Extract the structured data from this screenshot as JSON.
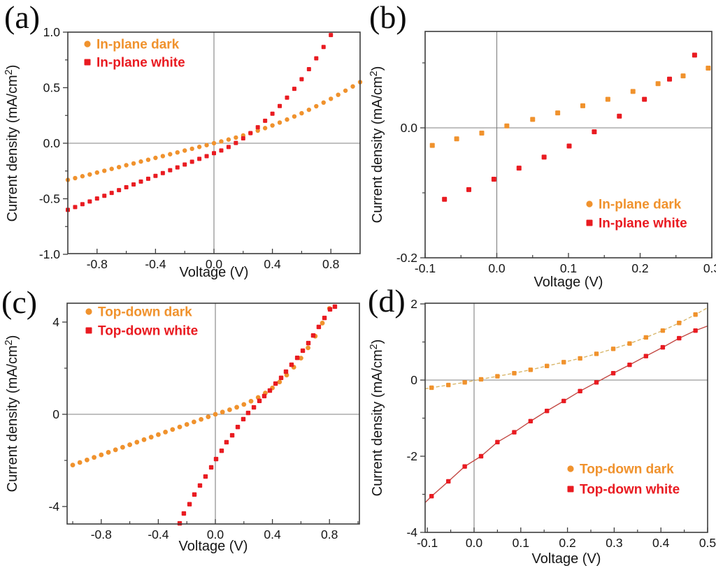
{
  "figure": {
    "panels": [
      {
        "tag": "(a)"
      },
      {
        "tag": "(b)"
      },
      {
        "tag": "(c)"
      },
      {
        "tag": "(d)"
      }
    ]
  },
  "colors": {
    "dark_series": "#F0922D",
    "white_series": "#E91B21",
    "dark_line": "#D8B66A",
    "white_line": "#C34843",
    "axis": "#3C3C3C",
    "zero_line": "#808080",
    "tick_label": "#151515"
  },
  "chart_data": [
    {
      "id": "a",
      "type": "scatter",
      "xlabel": "Voltage (V)",
      "ylabel": "Current density  (mA/cm²)",
      "xlim": [
        -1.0,
        1.0
      ],
      "ylim": [
        -1.0,
        1.0
      ],
      "x_major_ticks": [
        -0.8,
        -0.4,
        0.0,
        0.4,
        0.8
      ],
      "x_major_labels": [
        "-0.8",
        "-0.4",
        "0.0",
        "0.4",
        "0.8"
      ],
      "x_minor_ticks": [
        -0.6,
        -0.2,
        0.2,
        0.6
      ],
      "y_major_ticks": [
        1.0,
        0.5,
        0.0,
        -0.5,
        -1.0
      ],
      "y_major_labels": [
        "1.0",
        "0.5",
        "0.0",
        "-0.5",
        "-1.0"
      ],
      "y_minor_ticks": [
        0.75,
        0.25,
        -0.25,
        -0.75
      ],
      "zero_lines": true,
      "legend": {
        "position": "top-left",
        "items": [
          {
            "label": "In-plane dark",
            "marker": "circle",
            "color": "#F0922D"
          },
          {
            "label": "In-plane white",
            "marker": "square",
            "color": "#E91B21"
          }
        ]
      },
      "series": [
        {
          "name": "In-plane dark",
          "marker": "circle",
          "size": 6.4,
          "color": "#F0922D",
          "x": [
            -1.0,
            -0.95,
            -0.9,
            -0.85,
            -0.8,
            -0.75,
            -0.7,
            -0.65,
            -0.6,
            -0.55,
            -0.5,
            -0.45,
            -0.4,
            -0.35,
            -0.3,
            -0.25,
            -0.2,
            -0.15,
            -0.1,
            -0.05,
            0.0,
            0.05,
            0.1,
            0.15,
            0.2,
            0.25,
            0.3,
            0.35,
            0.4,
            0.45,
            0.5,
            0.55,
            0.6,
            0.65,
            0.7,
            0.75,
            0.8,
            0.85,
            0.9,
            0.95,
            1.0
          ],
          "y": [
            -0.33,
            -0.314,
            -0.297,
            -0.281,
            -0.264,
            -0.248,
            -0.231,
            -0.215,
            -0.198,
            -0.182,
            -0.165,
            -0.149,
            -0.132,
            -0.116,
            -0.099,
            -0.083,
            -0.066,
            -0.05,
            -0.033,
            -0.017,
            0.0,
            0.016,
            0.033,
            0.051,
            0.07,
            0.091,
            0.113,
            0.136,
            0.16,
            0.186,
            0.213,
            0.241,
            0.27,
            0.301,
            0.333,
            0.366,
            0.4,
            0.436,
            0.473,
            0.511,
            0.55
          ]
        },
        {
          "name": "In-plane white",
          "marker": "square",
          "size": 6.0,
          "color": "#E91B21",
          "x": [
            -1.0,
            -0.95,
            -0.9,
            -0.85,
            -0.8,
            -0.75,
            -0.7,
            -0.65,
            -0.6,
            -0.55,
            -0.5,
            -0.45,
            -0.4,
            -0.35,
            -0.3,
            -0.25,
            -0.2,
            -0.15,
            -0.1,
            -0.05,
            0.0,
            0.05,
            0.1,
            0.15,
            0.2,
            0.25,
            0.3,
            0.35,
            0.4,
            0.45,
            0.5,
            0.55,
            0.6,
            0.65,
            0.7,
            0.75,
            0.8
          ],
          "y": [
            -0.6,
            -0.575,
            -0.549,
            -0.524,
            -0.498,
            -0.473,
            -0.447,
            -0.422,
            -0.396,
            -0.371,
            -0.345,
            -0.32,
            -0.294,
            -0.269,
            -0.243,
            -0.218,
            -0.192,
            -0.167,
            -0.141,
            -0.116,
            -0.09,
            -0.065,
            -0.034,
            0.002,
            0.044,
            0.091,
            0.144,
            0.202,
            0.266,
            0.335,
            0.41,
            0.49,
            0.576,
            0.667,
            0.764,
            0.866,
            0.974
          ]
        }
      ]
    },
    {
      "id": "b",
      "type": "scatter",
      "xlabel": "Voltage (V)",
      "ylabel": "Current density  (mA/cm²)",
      "xlim": [
        -0.1,
        0.3
      ],
      "ylim": [
        -0.2,
        0.148
      ],
      "x_major_ticks": [
        -0.1,
        0.0,
        0.1,
        0.2,
        0.3
      ],
      "x_major_labels": [
        "-0.1",
        "0.0",
        "0.1",
        "0.2",
        "0.3"
      ],
      "x_minor_ticks": [
        -0.05,
        0.05,
        0.15,
        0.25
      ],
      "y_major_ticks": [
        0.0,
        -0.2
      ],
      "y_major_labels": [
        "0.0",
        "-0.2"
      ],
      "y_minor_ticks": [
        0.1,
        -0.1
      ],
      "zero_lines": true,
      "legend": {
        "position": "bottom-right",
        "items": [
          {
            "label": "In-plane dark",
            "marker": "circle",
            "color": "#F0922D"
          },
          {
            "label": "In-plane white",
            "marker": "square",
            "color": "#E91B21"
          }
        ]
      },
      "series": [
        {
          "name": "In-plane dark",
          "marker": "square",
          "size": 7.0,
          "color": "#F0922D",
          "x": [
            -0.09,
            -0.056,
            -0.021,
            0.014,
            0.05,
            0.085,
            0.12,
            0.155,
            0.19,
            0.225,
            0.26,
            0.295
          ],
          "y": [
            -0.027,
            -0.017,
            -0.008,
            0.003,
            0.013,
            0.023,
            0.034,
            0.044,
            0.056,
            0.068,
            0.08,
            0.092
          ]
        },
        {
          "name": "In-plane white",
          "marker": "square",
          "size": 7.0,
          "color": "#E91B21",
          "x": [
            -0.073,
            -0.039,
            -0.004,
            0.031,
            0.066,
            0.101,
            0.136,
            0.171,
            0.206,
            0.241,
            0.276
          ],
          "y": [
            -0.11,
            -0.095,
            -0.079,
            -0.062,
            -0.045,
            -0.028,
            -0.006,
            0.018,
            0.044,
            0.075,
            0.112
          ]
        }
      ]
    },
    {
      "id": "c",
      "type": "scatter",
      "xlabel": "Voltage (V)",
      "ylabel": "Current density  (mA/cm²)",
      "xlim": [
        -1.04,
        1.01
      ],
      "ylim": [
        -4.8,
        4.83
      ],
      "x_major_ticks": [
        -0.8,
        -0.4,
        0.0,
        0.4,
        0.8
      ],
      "x_major_labels": [
        "-0.8",
        "-0.4",
        "0.0",
        "0.4",
        "0.8"
      ],
      "x_minor_ticks": [
        -1.0,
        -0.6,
        -0.2,
        0.2,
        0.6,
        1.0
      ],
      "y_major_ticks": [
        4,
        0,
        -4
      ],
      "y_major_labels": [
        "4",
        "0",
        "-4"
      ],
      "y_minor_ticks": [
        2,
        -2
      ],
      "zero_lines": true,
      "legend": {
        "position": "top-left",
        "items": [
          {
            "label": "Top-down dark",
            "marker": "circle",
            "color": "#F0922D"
          },
          {
            "label": "Top-down white",
            "marker": "square",
            "color": "#E91B21"
          }
        ]
      },
      "series": [
        {
          "name": "Top-down dark",
          "marker": "circle",
          "size": 6.8,
          "color": "#F0922D",
          "x": [
            -1.0,
            -0.95,
            -0.9,
            -0.85,
            -0.8,
            -0.75,
            -0.7,
            -0.65,
            -0.6,
            -0.55,
            -0.5,
            -0.45,
            -0.4,
            -0.35,
            -0.3,
            -0.25,
            -0.2,
            -0.15,
            -0.1,
            -0.05,
            0.0,
            0.05,
            0.1,
            0.15,
            0.2,
            0.25,
            0.3,
            0.35,
            0.4,
            0.45,
            0.5,
            0.55,
            0.6,
            0.65,
            0.7,
            0.75,
            0.8
          ],
          "y": [
            -2.2,
            -2.09,
            -1.98,
            -1.87,
            -1.76,
            -1.65,
            -1.54,
            -1.43,
            -1.32,
            -1.21,
            -1.1,
            -0.99,
            -0.88,
            -0.77,
            -0.66,
            -0.55,
            -0.44,
            -0.33,
            -0.22,
            -0.11,
            0.0,
            0.096,
            0.196,
            0.305,
            0.428,
            0.569,
            0.732,
            0.922,
            1.144,
            1.402,
            1.7,
            2.043,
            2.436,
            2.883,
            3.388,
            3.956,
            4.592
          ]
        },
        {
          "name": "Top-down white",
          "marker": "square",
          "size": 6.4,
          "color": "#E91B21",
          "x": [
            -0.25,
            -0.221,
            -0.181,
            -0.147,
            -0.108,
            -0.069,
            -0.029,
            0.005,
            0.044,
            0.078,
            0.118,
            0.157,
            0.196,
            0.23,
            0.27,
            0.309,
            0.343,
            0.382,
            0.422,
            0.461,
            0.495,
            0.534,
            0.574,
            0.613,
            0.652,
            0.686,
            0.725,
            0.765,
            0.804,
            0.838
          ],
          "y": [
            -4.73,
            -4.3,
            -3.9,
            -3.48,
            -3.09,
            -2.7,
            -2.3,
            -1.94,
            -1.58,
            -1.21,
            -0.91,
            -0.55,
            -0.21,
            0.06,
            0.3,
            0.58,
            0.79,
            1.03,
            1.33,
            1.58,
            1.85,
            2.15,
            2.45,
            2.76,
            3.09,
            3.42,
            3.79,
            4.18,
            4.55,
            4.67
          ]
        }
      ]
    },
    {
      "id": "d",
      "type": "scatter",
      "xlabel": "Voltage (V)",
      "ylabel": "Current density  (mA/cm²)",
      "xlim": [
        -0.105,
        0.5
      ],
      "ylim": [
        -4.0,
        2.02
      ],
      "x_major_ticks": [
        -0.1,
        0.0,
        0.1,
        0.2,
        0.3,
        0.4,
        0.5
      ],
      "x_major_labels": [
        "-0.1",
        "0.0",
        "0.1",
        "0.2",
        "0.3",
        "0.4",
        "0.5"
      ],
      "x_minor_ticks": [
        -0.05,
        0.05,
        0.15,
        0.25,
        0.35,
        0.45
      ],
      "y_major_ticks": [
        2,
        0,
        -2,
        -4
      ],
      "y_major_labels": [
        "2",
        "0",
        "-2",
        "-4"
      ],
      "y_minor_ticks": [
        1,
        -1,
        -3
      ],
      "zero_lines": true,
      "legend": {
        "position": "middle-right",
        "items": [
          {
            "label": "Top-down dark",
            "marker": "circle",
            "color": "#F0922D"
          },
          {
            "label": "Top-down white",
            "marker": "square",
            "color": "#E91B21"
          }
        ]
      },
      "series": [
        {
          "name": "Top-down dark",
          "marker": "square",
          "size": 6.4,
          "color": "#F0922D",
          "line_color": "#D8B66A",
          "line_dash": "5 3",
          "line_pre": [
            -0.105,
            -0.23
          ],
          "line_post": [
            0.5,
            1.9
          ],
          "x": [
            -0.091,
            -0.055,
            -0.02,
            0.015,
            0.05,
            0.086,
            0.121,
            0.156,
            0.192,
            0.227,
            0.262,
            0.298,
            0.333,
            0.368,
            0.404,
            0.439,
            0.474
          ],
          "y": [
            -0.2,
            -0.13,
            -0.06,
            0.02,
            0.1,
            0.18,
            0.27,
            0.37,
            0.47,
            0.57,
            0.69,
            0.82,
            0.96,
            1.12,
            1.3,
            1.5,
            1.72
          ]
        },
        {
          "name": "Top-down white",
          "marker": "square",
          "size": 6.4,
          "color": "#E91B21",
          "line_color": "#C34843",
          "line_dash": "",
          "line_pre": [
            -0.105,
            -3.22
          ],
          "line_post": [
            0.5,
            1.42
          ],
          "x": [
            -0.091,
            -0.055,
            -0.02,
            0.015,
            0.05,
            0.086,
            0.121,
            0.156,
            0.192,
            0.227,
            0.262,
            0.298,
            0.333,
            0.368,
            0.404,
            0.439,
            0.474
          ],
          "y": [
            -3.05,
            -2.66,
            -2.27,
            -2.0,
            -1.63,
            -1.37,
            -1.08,
            -0.81,
            -0.55,
            -0.29,
            -0.06,
            0.18,
            0.4,
            0.63,
            0.86,
            1.1,
            1.3
          ]
        }
      ]
    }
  ]
}
